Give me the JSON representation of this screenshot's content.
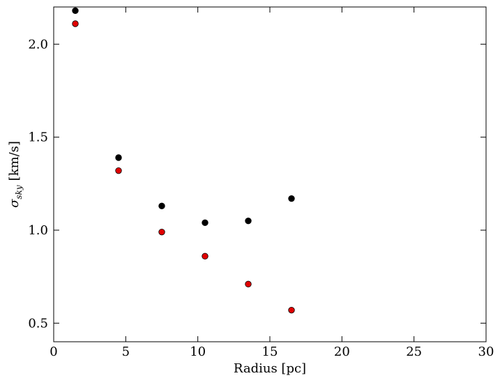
{
  "chart_data": {
    "type": "scatter",
    "title": "",
    "xlabel": "Radius [pc]",
    "ylabel_sigma": "σ",
    "ylabel_subscript": "sky",
    "ylabel_units": "[km/s]",
    "xlim": [
      0,
      30
    ],
    "ylim": [
      0.4,
      2.2
    ],
    "grid": false,
    "legend": "none",
    "x_ticks": [
      0,
      5,
      10,
      15,
      20,
      25,
      30
    ],
    "x_tick_labels": [
      "0",
      "5",
      "10",
      "15",
      "20",
      "25",
      "30"
    ],
    "y_ticks": [
      0.5,
      1.0,
      1.5,
      2.0
    ],
    "y_tick_labels": [
      "0.5",
      "1.0",
      "1.5",
      "2.0"
    ],
    "series": [
      {
        "color": "#000000",
        "x": [
          1.5,
          4.5,
          7.5,
          10.5,
          13.5,
          16.5
        ],
        "y": [
          2.18,
          1.39,
          1.13,
          1.04,
          1.05,
          1.17
        ]
      },
      {
        "color": "#e00000",
        "x": [
          1.5,
          4.5,
          7.5,
          10.5,
          13.5,
          16.5
        ],
        "y": [
          2.11,
          1.32,
          0.99,
          0.86,
          0.71,
          0.57
        ]
      }
    ]
  }
}
